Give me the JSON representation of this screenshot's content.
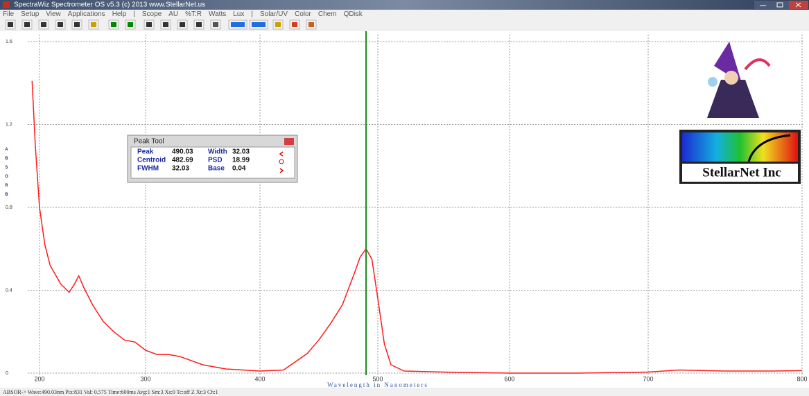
{
  "window": {
    "title": "SpectraWiz  Spectrometer OS v5.3 (c) 2013    www.StellarNet.us",
    "menu": [
      "File",
      "Setup",
      "View",
      "Applications",
      "Help",
      "|",
      "Scope",
      "AU",
      "%T:R",
      "Watts",
      "Lux",
      "|",
      "Solar/UV",
      "Color",
      "Chem",
      "QDisk"
    ],
    "status": "ABSOR-> Wave:490.03nm  Pix:831  Val: 0.575  Time:600ms  Avg:1  Sm:3  Xs:0  Tc:off  Z  Xt:3  Ch:1"
  },
  "peak_tool": {
    "title": "Peak Tool",
    "items": [
      {
        "label": "Peak",
        "value": 490.03
      },
      {
        "label": "Width",
        "value": 32.03
      },
      {
        "label": "Centroid",
        "value": 482.69
      },
      {
        "label": "PSD",
        "value": 18.99
      },
      {
        "label": "FWHM",
        "value": 32.03
      },
      {
        "label": "Base",
        "value": 0.04
      }
    ]
  },
  "logo": "StellarNet Inc",
  "chart_data": {
    "type": "line",
    "x_label": "Wavelength in Nanometers",
    "y_label": "ABSORB",
    "color": "#ff1a1a",
    "x": [
      193,
      196,
      200,
      205,
      210,
      220,
      228,
      233,
      237,
      242,
      250,
      260,
      270,
      280,
      290,
      300,
      310,
      320,
      330,
      350,
      370,
      400,
      420,
      440,
      450,
      460,
      470,
      480,
      485,
      490,
      495,
      500,
      505,
      510,
      520,
      550,
      600,
      650,
      700,
      720,
      750,
      780,
      800
    ],
    "values": [
      1.41,
      1.1,
      0.8,
      0.62,
      0.52,
      0.43,
      0.39,
      0.43,
      0.47,
      0.41,
      0.33,
      0.25,
      0.2,
      0.16,
      0.15,
      0.11,
      0.09,
      0.09,
      0.08,
      0.04,
      0.02,
      0.01,
      0.015,
      0.094,
      0.16,
      0.24,
      0.33,
      0.48,
      0.56,
      0.6,
      0.55,
      0.36,
      0.14,
      0.04,
      0.01,
      0.005,
      0,
      0,
      0.005,
      0.015,
      0.01,
      0.01,
      0.012
    ],
    "xlim": [
      189,
      801
    ],
    "ylim": [
      0,
      1.6
    ],
    "xticks": [
      200,
      300,
      400,
      500,
      600,
      700,
      800
    ],
    "yticks": [
      0,
      0.4,
      0.8,
      1.2,
      1.6
    ],
    "grid": true
  }
}
